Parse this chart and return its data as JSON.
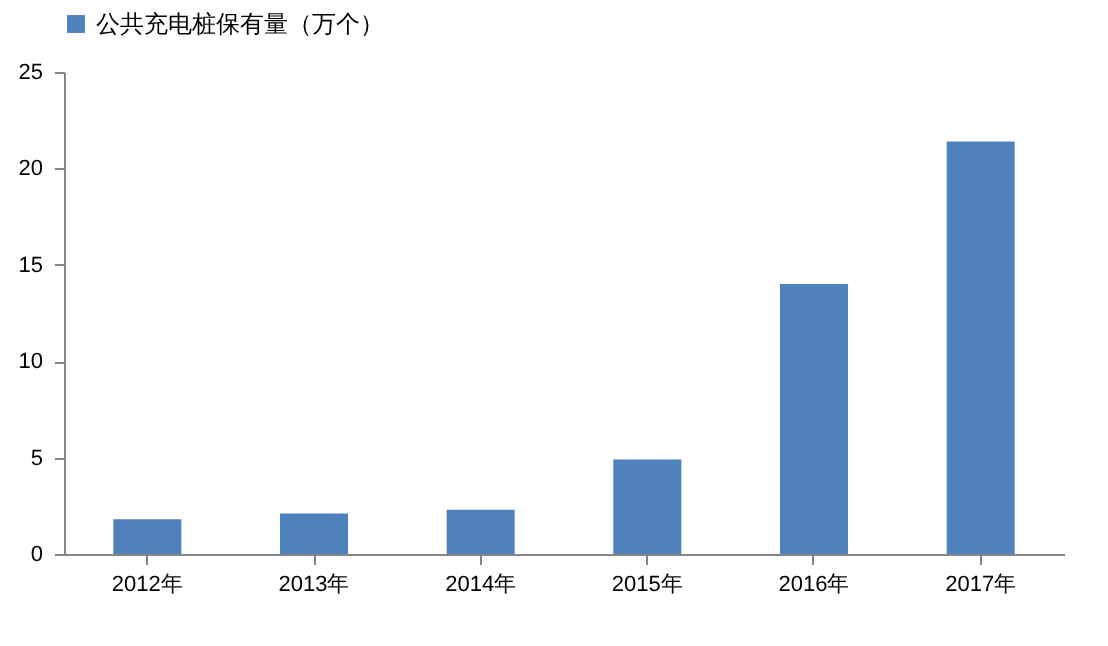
{
  "chart_data": {
    "type": "bar",
    "categories": [
      "2012年",
      "2013年",
      "2014年",
      "2015年",
      "2016年",
      "2017年"
    ],
    "series": [
      {
        "name": "公共充电桩保有量（万个）",
        "color": "#4f81bd",
        "values": [
          1.8,
          2.1,
          2.3,
          4.9,
          14.0,
          21.4
        ]
      }
    ],
    "ylim": [
      0,
      25
    ],
    "yticks": [
      0,
      5,
      10,
      15,
      20,
      25
    ],
    "grid": false,
    "legend": "top"
  }
}
